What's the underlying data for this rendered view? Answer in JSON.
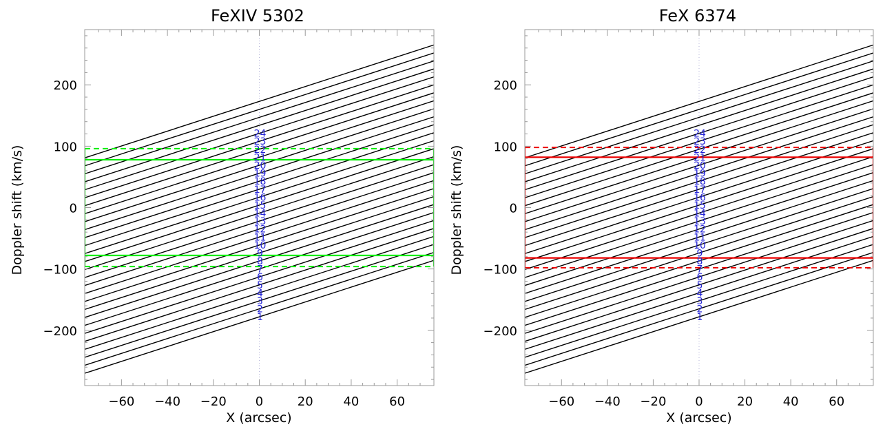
{
  "chart_data": [
    {
      "type": "line",
      "title": "FeXIV 5302",
      "xlabel": "X (arcsec)",
      "ylabel": "Doppler shift (km/s)",
      "xlim": [
        -76,
        76
      ],
      "ylim": [
        -290,
        290
      ],
      "xticks": [
        -60,
        -40,
        -20,
        0,
        20,
        40,
        60
      ],
      "yticks": [
        -200,
        -100,
        0,
        100,
        200
      ],
      "grid": false,
      "slope": 1.21,
      "series_intercepts": [
        -178,
        -165,
        -152,
        -139,
        -126,
        -113,
        -100,
        -87,
        -74,
        -61,
        -48,
        -35,
        -22,
        -9,
        4,
        17,
        30,
        43,
        56,
        69,
        82,
        95,
        108,
        121,
        134,
        147,
        160,
        173
      ],
      "line_color": "#000000",
      "numbers": [
        "1",
        "2",
        "3",
        "4",
        "5",
        "6",
        "7",
        "8",
        "9",
        "10",
        "11",
        "12",
        "13",
        "14",
        "15",
        "16",
        "17",
        "18",
        "19",
        "20",
        "21",
        "22",
        "23",
        "24"
      ],
      "number_y": [
        -178,
        -165,
        -152,
        -139,
        -126,
        -113,
        -100,
        -87,
        -74,
        -61,
        -48,
        -35,
        -22,
        -9,
        4,
        17,
        30,
        43,
        56,
        69,
        82,
        95,
        108,
        121
      ],
      "number_color": "#2323d6",
      "center_line_x": 0,
      "box": {
        "color": "#00ee00",
        "x": [
          -76,
          76
        ],
        "solid_y": [
          -78,
          78
        ],
        "dashed_y": [
          -96,
          96
        ]
      }
    },
    {
      "type": "line",
      "title": "FeX 6374",
      "xlabel": "X (arcsec)",
      "ylabel": "Doppler shift (km/s)",
      "xlim": [
        -76,
        76
      ],
      "ylim": [
        -290,
        290
      ],
      "xticks": [
        -60,
        -40,
        -20,
        0,
        20,
        40,
        60
      ],
      "yticks": [
        -200,
        -100,
        0,
        100,
        200
      ],
      "grid": false,
      "slope": 1.21,
      "series_intercepts": [
        -178,
        -165,
        -152,
        -139,
        -126,
        -113,
        -100,
        -87,
        -74,
        -61,
        -48,
        -35,
        -22,
        -9,
        4,
        17,
        30,
        43,
        56,
        69,
        82,
        95,
        108,
        121,
        134,
        147,
        160,
        173
      ],
      "line_color": "#000000",
      "numbers": [
        "1",
        "2",
        "3",
        "4",
        "5",
        "6",
        "7",
        "8",
        "9",
        "10",
        "11",
        "12",
        "13",
        "14",
        "15",
        "16",
        "17",
        "18",
        "19",
        "20",
        "21",
        "22",
        "23",
        "24"
      ],
      "number_y": [
        -178,
        -165,
        -152,
        -139,
        -126,
        -113,
        -100,
        -87,
        -74,
        -61,
        -48,
        -35,
        -22,
        -9,
        4,
        17,
        30,
        43,
        56,
        69,
        82,
        95,
        108,
        121
      ],
      "number_color": "#2323d6",
      "center_line_x": 0,
      "box": {
        "color": "#ee0000",
        "x": [
          -76,
          76
        ],
        "solid_y": [
          -82,
          82
        ],
        "dashed_y": [
          -98,
          98
        ]
      }
    }
  ]
}
